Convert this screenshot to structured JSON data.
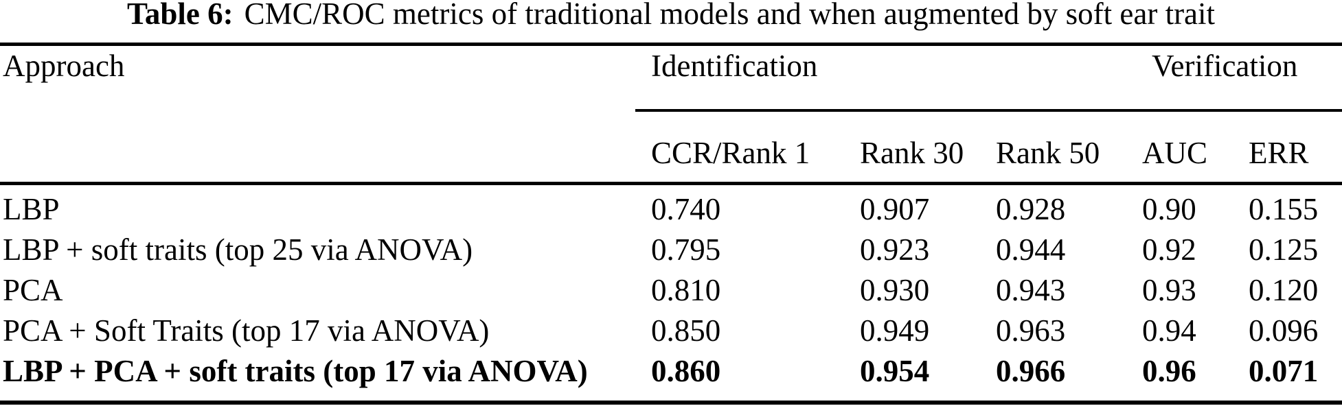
{
  "caption": {
    "label": "Table 6:",
    "text": "CMC/ROC metrics of traditional models and when augmented by soft ear trait"
  },
  "header": {
    "approach": "Approach",
    "identification": "Identification",
    "verification": "Verification",
    "sub": [
      "CCR/Rank 1",
      "Rank 30",
      "Rank 50",
      "AUC",
      "ERR"
    ]
  },
  "rows": [
    {
      "label": "LBP",
      "values": [
        "0.740",
        "0.907",
        "0.928",
        "0.90",
        "0.155"
      ],
      "bold": false
    },
    {
      "label": "LBP + soft traits (top 25 via ANOVA)",
      "values": [
        "0.795",
        "0.923",
        "0.944",
        "0.92",
        "0.125"
      ],
      "bold": false
    },
    {
      "label": "PCA",
      "values": [
        "0.810",
        "0.930",
        "0.943",
        "0.93",
        "0.120"
      ],
      "bold": false
    },
    {
      "label": "PCA + Soft Traits (top 17 via ANOVA)",
      "values": [
        "0.850",
        "0.949",
        "0.963",
        "0.94",
        "0.096"
      ],
      "bold": false
    },
    {
      "label": "LBP + PCA + soft traits (top 17 via ANOVA)",
      "values": [
        "0.860",
        "0.954",
        "0.966",
        "0.96",
        "0.071"
      ],
      "bold": true
    }
  ],
  "colors": {
    "text": "#000000",
    "background": "#ffffff",
    "rule": "#000000"
  }
}
